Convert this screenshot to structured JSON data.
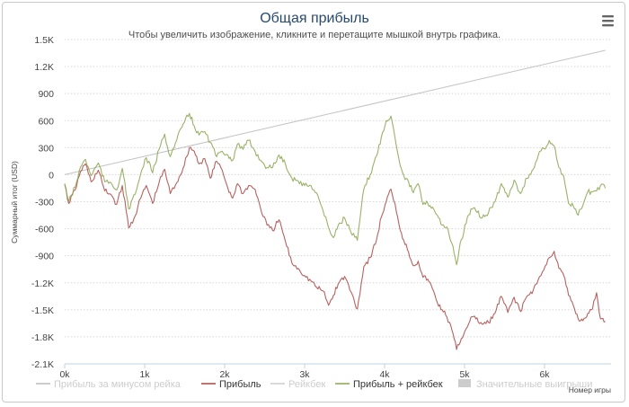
{
  "chart_data": {
    "type": "line",
    "title": "Общая прибыль",
    "subtitle": "Чтобы увеличить изображение, кликните и перетащите мышкой внутрь графика.",
    "xlabel": "Номер игры",
    "ylabel": "Суммарный итог (USD)",
    "xlim": [
      0,
      6800
    ],
    "ylim": [
      -2100,
      1500
    ],
    "x_ticks": [
      {
        "value": 0,
        "label": "0k"
      },
      {
        "value": 1000,
        "label": "1k"
      },
      {
        "value": 2000,
        "label": "2k"
      },
      {
        "value": 3000,
        "label": "3k"
      },
      {
        "value": 4000,
        "label": "4k"
      },
      {
        "value": 5000,
        "label": "5k"
      },
      {
        "value": 6000,
        "label": "6k"
      }
    ],
    "y_ticks": [
      {
        "value": 1500,
        "label": "1.5K"
      },
      {
        "value": 1200,
        "label": "1.2K"
      },
      {
        "value": 900,
        "label": "900"
      },
      {
        "value": 600,
        "label": "600"
      },
      {
        "value": 300,
        "label": "300"
      },
      {
        "value": 0,
        "label": "0"
      },
      {
        "value": -300,
        "label": "-300"
      },
      {
        "value": -600,
        "label": "-600"
      },
      {
        "value": -900,
        "label": "-900"
      },
      {
        "value": -1200,
        "label": "-1.2K"
      },
      {
        "value": -1500,
        "label": "-1.5K"
      },
      {
        "value": -1800,
        "label": "-1.8K"
      },
      {
        "value": -2100,
        "label": "-2.1K"
      }
    ],
    "grid": true,
    "legend_position": "bottom",
    "series": [
      {
        "name": "Прибыль за минусом рейка",
        "color": "#bbbbbb",
        "visible": true,
        "x": [
          0,
          6760
        ],
        "values": [
          0,
          1380
        ]
      },
      {
        "name": "Прибыль",
        "color": "#aa4643",
        "visible": true,
        "x": [
          0,
          50,
          130,
          200,
          260,
          330,
          420,
          500,
          580,
          650,
          720,
          800,
          880,
          950,
          1020,
          1100,
          1180,
          1250,
          1320,
          1400,
          1480,
          1560,
          1620,
          1680,
          1750,
          1820,
          1900,
          1970,
          2040,
          2100,
          2160,
          2230,
          2300,
          2380,
          2450,
          2530,
          2600,
          2680,
          2760,
          2840,
          2920,
          3000,
          3080,
          3150,
          3230,
          3300,
          3360,
          3420,
          3500,
          3580,
          3660,
          3740,
          3820,
          3900,
          3960,
          4020,
          4080,
          4130,
          4180,
          4240,
          4300,
          4360,
          4420,
          4480,
          4540,
          4600,
          4660,
          4720,
          4780,
          4840,
          4900,
          4960,
          5020,
          5080,
          5140,
          5220,
          5300,
          5380,
          5460,
          5540,
          5620,
          5700,
          5780,
          5860,
          5920,
          5990,
          6060,
          6120,
          6180,
          6240,
          6300,
          6360,
          6420,
          6480,
          6540,
          6600,
          6650,
          6700,
          6760
        ],
        "values": [
          -110,
          -320,
          -170,
          40,
          120,
          -80,
          50,
          -180,
          -220,
          -330,
          -120,
          -590,
          -460,
          -260,
          -120,
          -320,
          -90,
          60,
          -210,
          -90,
          70,
          300,
          260,
          120,
          180,
          -40,
          150,
          50,
          -150,
          -260,
          -100,
          -210,
          -120,
          -160,
          -380,
          -560,
          -620,
          -500,
          -740,
          -980,
          -1040,
          -1120,
          -1180,
          -1250,
          -1290,
          -1450,
          -1340,
          -1210,
          -1130,
          -1300,
          -1490,
          -1020,
          -920,
          -720,
          -470,
          -300,
          -160,
          -320,
          -550,
          -730,
          -860,
          -1010,
          -960,
          -1140,
          -1160,
          -1270,
          -1420,
          -1500,
          -1580,
          -1720,
          -1940,
          -1820,
          -1710,
          -1580,
          -1600,
          -1660,
          -1640,
          -1540,
          -1350,
          -1530,
          -1360,
          -1520,
          -1350,
          -1280,
          -1170,
          -1060,
          -920,
          -850,
          -1040,
          -1120,
          -1340,
          -1450,
          -1600,
          -1620,
          -1540,
          -1490,
          -1310,
          -1600,
          -1630
        ]
      },
      {
        "name": "Рейкбек",
        "color": "#274b6d",
        "visible": false,
        "x": [
          0,
          6760
        ],
        "values": [
          0,
          0
        ]
      },
      {
        "name": "Прибыль + рейкбек",
        "color": "#89a54e",
        "visible": true,
        "x": [
          0,
          50,
          130,
          200,
          260,
          330,
          420,
          500,
          580,
          650,
          720,
          800,
          880,
          950,
          1020,
          1100,
          1180,
          1250,
          1320,
          1400,
          1480,
          1560,
          1620,
          1680,
          1750,
          1820,
          1900,
          1970,
          2040,
          2100,
          2160,
          2230,
          2300,
          2380,
          2450,
          2530,
          2600,
          2680,
          2760,
          2840,
          2920,
          3000,
          3080,
          3150,
          3230,
          3300,
          3360,
          3420,
          3500,
          3580,
          3660,
          3740,
          3820,
          3900,
          3960,
          4020,
          4080,
          4130,
          4180,
          4240,
          4300,
          4360,
          4420,
          4480,
          4540,
          4600,
          4660,
          4720,
          4780,
          4840,
          4900,
          4960,
          5020,
          5080,
          5140,
          5220,
          5300,
          5380,
          5460,
          5540,
          5620,
          5700,
          5780,
          5860,
          5920,
          5990,
          6060,
          6120,
          6180,
          6240,
          6300,
          6360,
          6420,
          6480,
          6540,
          6600,
          6650,
          6700,
          6760
        ],
        "values": [
          -100,
          -300,
          -140,
          90,
          170,
          -10,
          130,
          -80,
          -90,
          -170,
          70,
          -380,
          -220,
          10,
          190,
          20,
          280,
          450,
          200,
          380,
          560,
          680,
          540,
          440,
          480,
          360,
          200,
          260,
          220,
          160,
          340,
          280,
          380,
          260,
          160,
          80,
          80,
          220,
          120,
          -40,
          -70,
          -120,
          -120,
          -200,
          -400,
          -590,
          -700,
          -560,
          -480,
          -640,
          -730,
          -160,
          0,
          210,
          420,
          600,
          650,
          410,
          170,
          -10,
          -80,
          -200,
          -100,
          -330,
          -320,
          -360,
          -450,
          -560,
          -580,
          -760,
          -1000,
          -720,
          -540,
          -380,
          -400,
          -480,
          -420,
          -300,
          -100,
          -250,
          -60,
          -210,
          -40,
          60,
          210,
          290,
          380,
          320,
          80,
          -20,
          -320,
          -350,
          -450,
          -340,
          -190,
          -190,
          -180,
          -120,
          -150
        ]
      },
      {
        "name": "Значительные выигрыши",
        "color": "#cccccc",
        "visible": false,
        "x": [],
        "values": []
      }
    ]
  }
}
